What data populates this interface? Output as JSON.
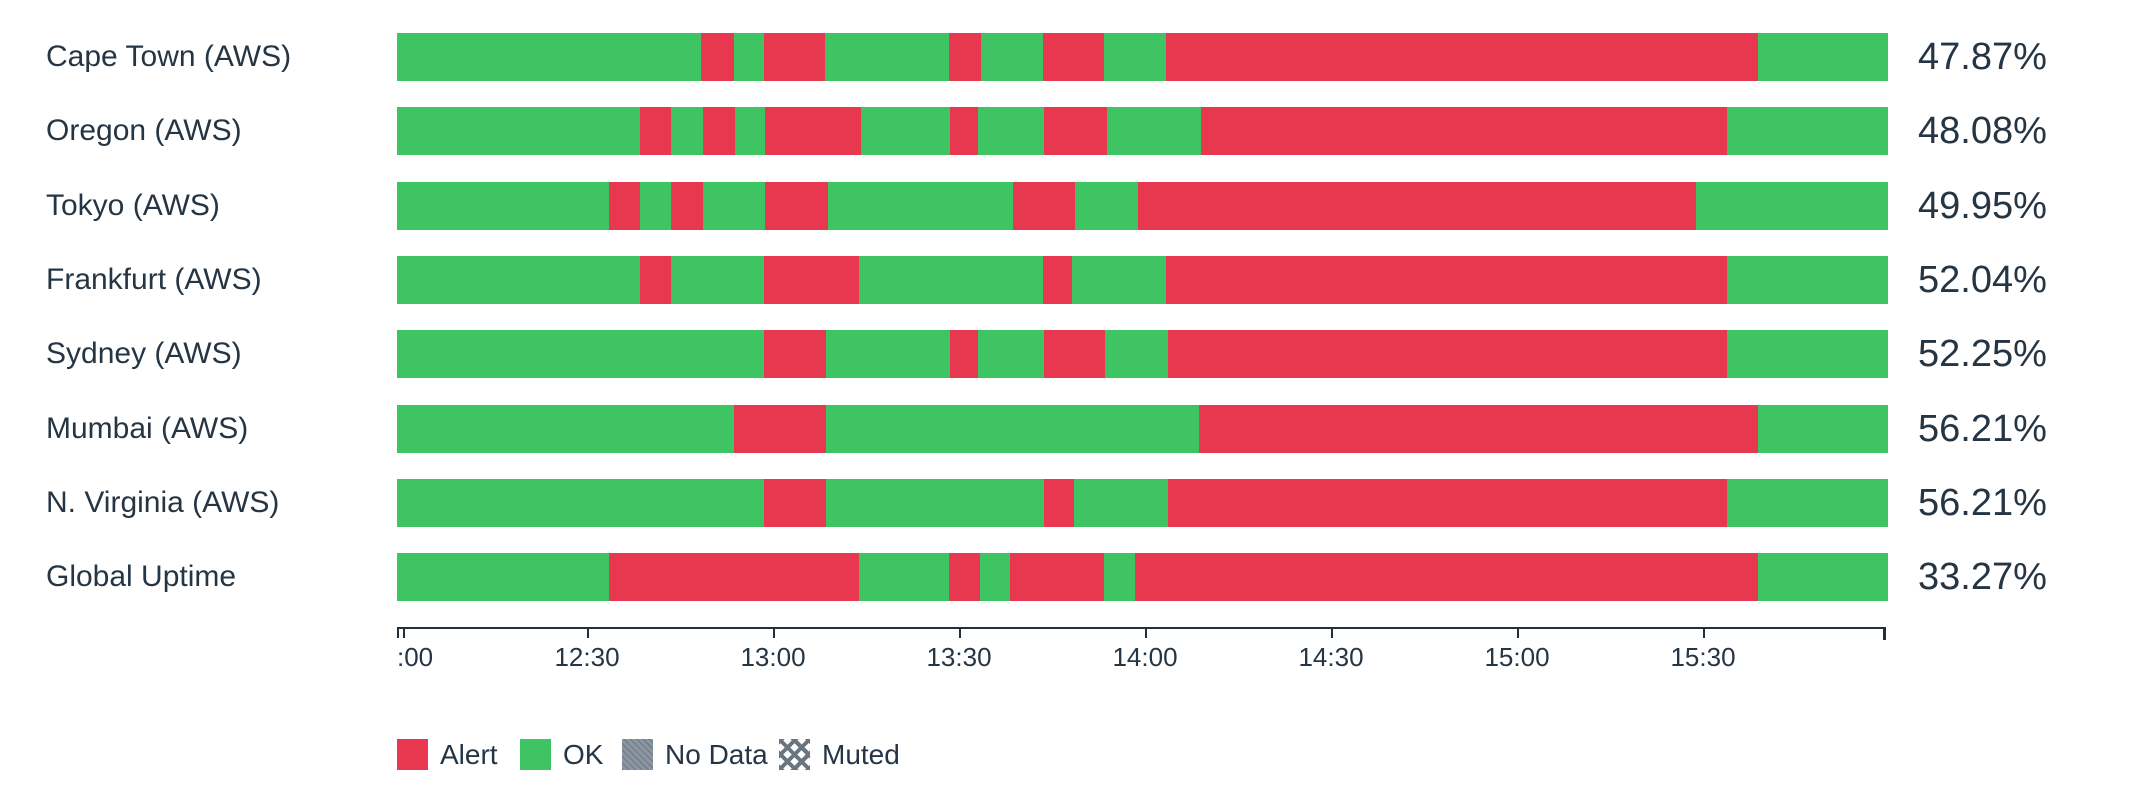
{
  "chart_data": {
    "type": "status-timeline",
    "orientation": "horizontal",
    "statuses": [
      "alert",
      "ok",
      "no_data",
      "muted"
    ],
    "status_colors": {
      "alert": "#e8384f",
      "ok": "#3ec463",
      "no_data": "#8b96a1",
      "text": "#263544",
      "axis": "#22303e"
    },
    "rows": [
      {
        "label": "Cape Town (AWS)",
        "uptime": "47.87%",
        "segments": [
          [
            "ok",
            20.4
          ],
          [
            "alert",
            2.2
          ],
          [
            "ok",
            2.0
          ],
          [
            "alert",
            4.1
          ],
          [
            "ok",
            8.3
          ],
          [
            "alert",
            2.2
          ],
          [
            "ok",
            4.1
          ],
          [
            "alert",
            4.1
          ],
          [
            "ok",
            4.2
          ],
          [
            "alert",
            39.7
          ],
          [
            "ok",
            8.7
          ]
        ]
      },
      {
        "label": "Oregon (AWS)",
        "uptime": "48.08%",
        "segments": [
          [
            "ok",
            16.3
          ],
          [
            "alert",
            2.1
          ],
          [
            "ok",
            2.1
          ],
          [
            "alert",
            2.2
          ],
          [
            "ok",
            2.0
          ],
          [
            "alert",
            6.4
          ],
          [
            "ok",
            6.0
          ],
          [
            "alert",
            1.9
          ],
          [
            "ok",
            4.4
          ],
          [
            "alert",
            4.2
          ],
          [
            "ok",
            6.3
          ],
          [
            "alert",
            35.3
          ],
          [
            "ok",
            10.8
          ]
        ]
      },
      {
        "label": "Tokyo (AWS)",
        "uptime": "49.95%",
        "segments": [
          [
            "ok",
            14.2
          ],
          [
            "alert",
            2.1
          ],
          [
            "ok",
            2.1
          ],
          [
            "alert",
            2.1
          ],
          [
            "ok",
            4.2
          ],
          [
            "alert",
            4.2
          ],
          [
            "ok",
            12.4
          ],
          [
            "alert",
            4.2
          ],
          [
            "ok",
            4.2
          ],
          [
            "alert",
            37.4
          ],
          [
            "ok",
            12.9
          ]
        ]
      },
      {
        "label": "Frankfurt (AWS)",
        "uptime": "52.04%",
        "segments": [
          [
            "ok",
            16.3
          ],
          [
            "alert",
            2.1
          ],
          [
            "ok",
            6.2
          ],
          [
            "alert",
            6.4
          ],
          [
            "ok",
            12.3
          ],
          [
            "alert",
            2.0
          ],
          [
            "ok",
            6.3
          ],
          [
            "alert",
            37.6
          ],
          [
            "ok",
            10.8
          ]
        ]
      },
      {
        "label": "Sydney (AWS)",
        "uptime": "52.25%",
        "segments": [
          [
            "ok",
            24.6
          ],
          [
            "alert",
            4.2
          ],
          [
            "ok",
            8.3
          ],
          [
            "alert",
            1.9
          ],
          [
            "ok",
            4.4
          ],
          [
            "alert",
            4.1
          ],
          [
            "ok",
            4.2
          ],
          [
            "alert",
            37.5
          ],
          [
            "ok",
            10.8
          ]
        ]
      },
      {
        "label": "Mumbai (AWS)",
        "uptime": "56.21%",
        "segments": [
          [
            "ok",
            22.6
          ],
          [
            "alert",
            6.2
          ],
          [
            "ok",
            25.0
          ],
          [
            "alert",
            37.5
          ],
          [
            "ok",
            8.7
          ]
        ]
      },
      {
        "label": "N. Virginia (AWS)",
        "uptime": "56.21%",
        "segments": [
          [
            "ok",
            24.6
          ],
          [
            "alert",
            4.2
          ],
          [
            "ok",
            14.6
          ],
          [
            "alert",
            2.0
          ],
          [
            "ok",
            6.3
          ],
          [
            "alert",
            37.5
          ],
          [
            "ok",
            10.8
          ]
        ]
      },
      {
        "label": "Global Uptime",
        "uptime": "33.27%",
        "segments": [
          [
            "ok",
            14.2
          ],
          [
            "alert",
            16.8
          ],
          [
            "ok",
            6.0
          ],
          [
            "alert",
            2.1
          ],
          [
            "ok",
            2.0
          ],
          [
            "alert",
            6.3
          ],
          [
            "ok",
            2.1
          ],
          [
            "alert",
            41.8
          ],
          [
            "ok",
            8.7
          ]
        ]
      }
    ],
    "x_axis": {
      "ticks": [
        {
          "pct": 0,
          "label": "",
          "edge": true
        },
        {
          "pct": 0.4,
          "label": ":00",
          "align": "left"
        },
        {
          "pct": 12.74,
          "label": "12:30"
        },
        {
          "pct": 25.23,
          "label": "13:00"
        },
        {
          "pct": 37.72,
          "label": "13:30"
        },
        {
          "pct": 50.21,
          "label": "14:00"
        },
        {
          "pct": 62.7,
          "label": "14:30"
        },
        {
          "pct": 75.2,
          "label": "15:00"
        },
        {
          "pct": 87.69,
          "label": "15:30"
        },
        {
          "pct": 99.8,
          "label": "",
          "end": true
        }
      ]
    },
    "legend": {
      "items": [
        {
          "label": "Alert",
          "swatch": "alert"
        },
        {
          "label": "OK",
          "swatch": "ok"
        },
        {
          "label": "No Data",
          "swatch": "no_data"
        },
        {
          "label": "Muted",
          "swatch": "muted"
        }
      ]
    }
  }
}
